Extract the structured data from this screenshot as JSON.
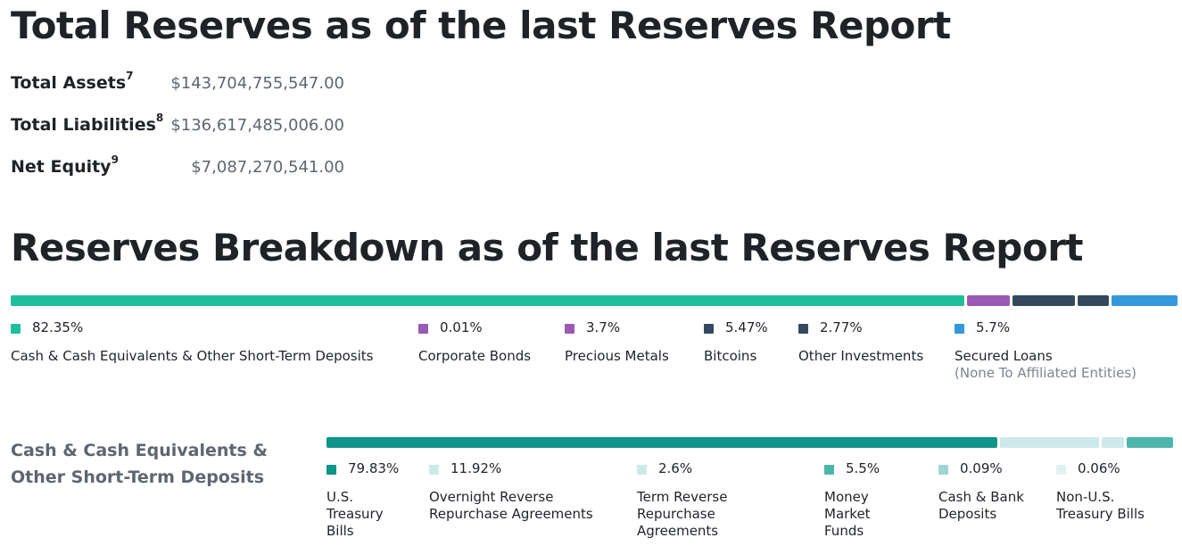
{
  "total_reserves": {
    "title": "Total Reserves as of the last Reserves Report",
    "rows": [
      {
        "label": "Total Assets",
        "sup": "7",
        "value": "$143,704,755,547.00"
      },
      {
        "label": "Total Liabilities",
        "sup": "8",
        "value": "$136,617,485,006.00"
      },
      {
        "label": "Net Equity",
        "sup": "9",
        "value": "$7,087,270,541.00"
      }
    ]
  },
  "breakdown": {
    "title": "Reserves Breakdown as of the last Reserves Report",
    "items": [
      {
        "pct": "82.35%",
        "name": "Cash & Cash Equivalents & Other Short-Term Deposits",
        "sub": "",
        "color": "#1fbf9c"
      },
      {
        "pct": "0.01%",
        "name": "Corporate Bonds",
        "sub": "",
        "color": "#9b59b6"
      },
      {
        "pct": "3.7%",
        "name": "Precious Metals",
        "sub": "",
        "color": "#9b59b6"
      },
      {
        "pct": "5.47%",
        "name": "Bitcoins",
        "sub": "",
        "color": "#34495e"
      },
      {
        "pct": "2.77%",
        "name": "Other Investments",
        "sub": "",
        "color": "#34495e"
      },
      {
        "pct": "5.7%",
        "name": "Secured Loans",
        "sub": "(None To Affiliated Entities)",
        "color": "#3498db"
      }
    ]
  },
  "cash_breakdown": {
    "heading": "Cash & Cash Equivalents & Other Short-Term Deposits",
    "items": [
      {
        "pct": "79.83%",
        "name": "U.S. Treasury Bills",
        "color": "#0e9488"
      },
      {
        "pct": "11.92%",
        "name": "Overnight Reverse Repurchase Agreements",
        "color": "#cdeaea"
      },
      {
        "pct": "2.6%",
        "name": "Term Reverse Repurchase Agreements",
        "color": "#cdeaea"
      },
      {
        "pct": "5.5%",
        "name": "Money Market Funds",
        "color": "#4db6ac"
      },
      {
        "pct": "0.09%",
        "name": "Cash & Bank Deposits",
        "color": "#9fd6d2"
      },
      {
        "pct": "0.06%",
        "name": "Non-U.S. Treasury Bills",
        "color": "#e3f2f1"
      }
    ]
  }
}
